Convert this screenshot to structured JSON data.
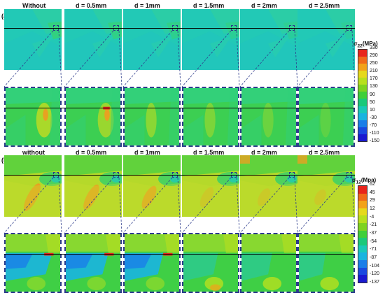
{
  "panel_a": {
    "letter": "(a)",
    "headers": [
      "Without",
      "d = 0.5mm",
      "d = 1mm",
      "d = 1.5mm",
      "d = 2mm",
      "d = 2.5mm"
    ],
    "legend_title_html": "σ<sub>22</sub>(MPa)",
    "legend_values": [
      "330",
      "290",
      "250",
      "210",
      "170",
      "130",
      "90",
      "50",
      "10",
      "-30",
      "-70",
      "-110",
      "-150"
    ],
    "legend_colors": [
      "#e8251c",
      "#f06a1a",
      "#f2a21a",
      "#e6d91c",
      "#b8e01e",
      "#7ed321",
      "#3fcf3a",
      "#1ac97a",
      "#19c9b8",
      "#19b4e0",
      "#1a7ee8",
      "#1a49e0",
      "#1a1ad0"
    ]
  },
  "panel_b": {
    "letter": "(b)",
    "headers": [
      "without",
      "d = 0.5mm",
      "d = 1mm",
      "d = 1.5mm",
      "d = 2mm",
      "d = 2.5mm"
    ],
    "legend_title_html": "σ<sub>12</sub>(Mpa)",
    "legend_values": [
      "62",
      "45",
      "29",
      "12",
      "-4",
      "-21",
      "-37",
      "-54",
      "-71",
      "-87",
      "-104",
      "-120",
      "-137"
    ],
    "legend_colors": [
      "#e8251c",
      "#f06a1a",
      "#f2a21a",
      "#e6d91c",
      "#b8e01e",
      "#7ed321",
      "#3fcf3a",
      "#1ac97a",
      "#19c9b8",
      "#19b4e0",
      "#1a7ee8",
      "#1a49e0",
      "#1a1ad0"
    ]
  },
  "colors": {
    "cyan_field": "#22c9b6",
    "green_field": "#46cf43",
    "yellow_field": "#b5d92a",
    "orange_band": "#e8a121",
    "frame_dash": "#2d3c8c"
  }
}
